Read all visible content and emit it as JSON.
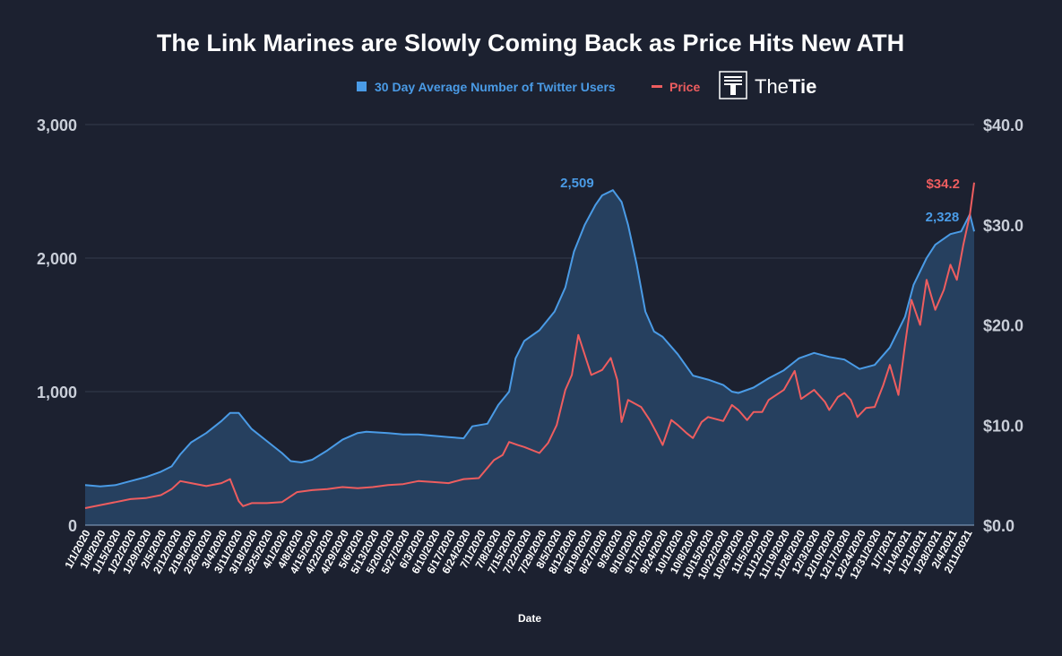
{
  "colors": {
    "background": "#1c2130",
    "grid": "#353b4b",
    "users_line": "#4a9be6",
    "users_fill": "#26405f",
    "price_line": "#ee5d5f",
    "axis_text": "#c9ced8",
    "text": "#ffffff"
  },
  "brand": {
    "logo_icon": "thetie-logo-icon",
    "name_part1": "The",
    "name_part2": "Tie"
  },
  "chart_data": {
    "type": "area",
    "title": "The Link Marines are Slowly Coming Back as Price Hits New ATH",
    "xlabel": "Date",
    "legend_position": "top-center",
    "grid": true,
    "y_left": {
      "min": 0,
      "max": 3000,
      "ticks": [
        0,
        1000,
        2000,
        3000
      ],
      "tick_labels": [
        "0",
        "1,000",
        "2,000",
        "3,000"
      ]
    },
    "y_right": {
      "min": 0,
      "max": 40,
      "ticks": [
        0,
        10,
        20,
        30,
        40
      ],
      "tick_labels": [
        "$0.0",
        "$10.0",
        "$20.0",
        "$30.0",
        "$40.0"
      ]
    },
    "x": {
      "start": "2020-01-01",
      "end": "2021-02-15",
      "tick_labels": [
        "1/1/2020",
        "1/8/2020",
        "1/15/2020",
        "1/22/2020",
        "1/29/2020",
        "2/5/2020",
        "2/12/2020",
        "2/19/2020",
        "2/26/2020",
        "3/4/2020",
        "3/11/2020",
        "3/18/2020",
        "3/25/2020",
        "4/1/2020",
        "4/8/2020",
        "4/15/2020",
        "4/22/2020",
        "4/29/2020",
        "5/6/2020",
        "5/13/2020",
        "5/20/2020",
        "5/27/2020",
        "6/3/2020",
        "6/10/2020",
        "6/17/2020",
        "6/24/2020",
        "7/1/2020",
        "7/8/2020",
        "7/15/2020",
        "7/22/2020",
        "7/29/2020",
        "8/5/2020",
        "8/12/2020",
        "8/19/2020",
        "8/27/2020",
        "9/3/2020",
        "9/10/2020",
        "9/17/2020",
        "9/24/2020",
        "10/1/2020",
        "10/8/2020",
        "10/15/2020",
        "10/22/2020",
        "10/29/2020",
        "11/5/2020",
        "11/12/2020",
        "11/19/2020",
        "11/26/2020",
        "12/3/2020",
        "12/10/2020",
        "12/17/2020",
        "12/24/2020",
        "12/31/2020",
        "1/7/2021",
        "1/14/2021",
        "1/21/2021",
        "1/28/2021",
        "2/4/2021",
        "2/11/2021"
      ]
    },
    "series": [
      {
        "name": "30 Day Average Number of Twitter Users",
        "axis": "left",
        "style": "area",
        "points": [
          [
            "2020-01-01",
            300
          ],
          [
            "2020-01-08",
            290
          ],
          [
            "2020-01-15",
            300
          ],
          [
            "2020-01-22",
            330
          ],
          [
            "2020-01-29",
            360
          ],
          [
            "2020-02-05",
            400
          ],
          [
            "2020-02-10",
            440
          ],
          [
            "2020-02-14",
            530
          ],
          [
            "2020-02-19",
            620
          ],
          [
            "2020-02-26",
            690
          ],
          [
            "2020-03-04",
            780
          ],
          [
            "2020-03-08",
            840
          ],
          [
            "2020-03-12",
            840
          ],
          [
            "2020-03-18",
            720
          ],
          [
            "2020-03-25",
            630
          ],
          [
            "2020-04-01",
            540
          ],
          [
            "2020-04-05",
            480
          ],
          [
            "2020-04-10",
            470
          ],
          [
            "2020-04-15",
            490
          ],
          [
            "2020-04-22",
            560
          ],
          [
            "2020-04-29",
            640
          ],
          [
            "2020-05-06",
            690
          ],
          [
            "2020-05-10",
            700
          ],
          [
            "2020-05-20",
            690
          ],
          [
            "2020-05-27",
            680
          ],
          [
            "2020-06-03",
            680
          ],
          [
            "2020-06-10",
            670
          ],
          [
            "2020-06-17",
            660
          ],
          [
            "2020-06-24",
            650
          ],
          [
            "2020-06-28",
            740
          ],
          [
            "2020-07-05",
            760
          ],
          [
            "2020-07-10",
            900
          ],
          [
            "2020-07-15",
            1000
          ],
          [
            "2020-07-18",
            1250
          ],
          [
            "2020-07-22",
            1380
          ],
          [
            "2020-07-29",
            1460
          ],
          [
            "2020-08-05",
            1600
          ],
          [
            "2020-08-10",
            1780
          ],
          [
            "2020-08-14",
            2050
          ],
          [
            "2020-08-19",
            2250
          ],
          [
            "2020-08-24",
            2400
          ],
          [
            "2020-08-27",
            2470
          ],
          [
            "2020-09-01",
            2509
          ],
          [
            "2020-09-05",
            2420
          ],
          [
            "2020-09-08",
            2250
          ],
          [
            "2020-09-12",
            1950
          ],
          [
            "2020-09-16",
            1600
          ],
          [
            "2020-09-20",
            1450
          ],
          [
            "2020-09-24",
            1410
          ],
          [
            "2020-10-01",
            1280
          ],
          [
            "2020-10-08",
            1120
          ],
          [
            "2020-10-15",
            1090
          ],
          [
            "2020-10-22",
            1050
          ],
          [
            "2020-10-26",
            1000
          ],
          [
            "2020-10-29",
            990
          ],
          [
            "2020-11-05",
            1030
          ],
          [
            "2020-11-12",
            1100
          ],
          [
            "2020-11-19",
            1160
          ],
          [
            "2020-11-26",
            1250
          ],
          [
            "2020-12-03",
            1290
          ],
          [
            "2020-12-10",
            1260
          ],
          [
            "2020-12-17",
            1240
          ],
          [
            "2020-12-24",
            1170
          ],
          [
            "2020-12-31",
            1200
          ],
          [
            "2021-01-07",
            1330
          ],
          [
            "2021-01-14",
            1560
          ],
          [
            "2021-01-18",
            1800
          ],
          [
            "2021-01-24",
            2000
          ],
          [
            "2021-01-28",
            2100
          ],
          [
            "2021-02-04",
            2180
          ],
          [
            "2021-02-09",
            2200
          ],
          [
            "2021-02-13",
            2328
          ],
          [
            "2021-02-15",
            2200
          ]
        ]
      },
      {
        "name": "Price",
        "axis": "right",
        "style": "line",
        "points": [
          [
            "2020-01-01",
            1.7
          ],
          [
            "2020-01-08",
            2.0
          ],
          [
            "2020-01-15",
            2.3
          ],
          [
            "2020-01-22",
            2.6
          ],
          [
            "2020-01-29",
            2.7
          ],
          [
            "2020-02-05",
            3.0
          ],
          [
            "2020-02-10",
            3.6
          ],
          [
            "2020-02-14",
            4.4
          ],
          [
            "2020-02-19",
            4.2
          ],
          [
            "2020-02-26",
            3.9
          ],
          [
            "2020-03-04",
            4.2
          ],
          [
            "2020-03-08",
            4.6
          ],
          [
            "2020-03-12",
            2.4
          ],
          [
            "2020-03-14",
            1.9
          ],
          [
            "2020-03-18",
            2.2
          ],
          [
            "2020-03-25",
            2.2
          ],
          [
            "2020-04-01",
            2.3
          ],
          [
            "2020-04-08",
            3.3
          ],
          [
            "2020-04-15",
            3.5
          ],
          [
            "2020-04-22",
            3.6
          ],
          [
            "2020-04-29",
            3.8
          ],
          [
            "2020-05-06",
            3.7
          ],
          [
            "2020-05-13",
            3.8
          ],
          [
            "2020-05-20",
            4.0
          ],
          [
            "2020-05-27",
            4.1
          ],
          [
            "2020-06-03",
            4.4
          ],
          [
            "2020-06-10",
            4.3
          ],
          [
            "2020-06-17",
            4.2
          ],
          [
            "2020-06-24",
            4.6
          ],
          [
            "2020-07-01",
            4.7
          ],
          [
            "2020-07-08",
            6.5
          ],
          [
            "2020-07-12",
            7.0
          ],
          [
            "2020-07-15",
            8.3
          ],
          [
            "2020-07-19",
            8.0
          ],
          [
            "2020-07-22",
            7.8
          ],
          [
            "2020-07-29",
            7.2
          ],
          [
            "2020-08-02",
            8.2
          ],
          [
            "2020-08-06",
            10.0
          ],
          [
            "2020-08-10",
            13.5
          ],
          [
            "2020-08-13",
            15.0
          ],
          [
            "2020-08-16",
            19.0
          ],
          [
            "2020-08-19",
            17.0
          ],
          [
            "2020-08-22",
            15.0
          ],
          [
            "2020-08-27",
            15.5
          ],
          [
            "2020-08-31",
            16.7
          ],
          [
            "2020-09-03",
            14.5
          ],
          [
            "2020-09-05",
            10.3
          ],
          [
            "2020-09-08",
            12.5
          ],
          [
            "2020-09-14",
            11.8
          ],
          [
            "2020-09-18",
            10.5
          ],
          [
            "2020-09-21",
            9.3
          ],
          [
            "2020-09-24",
            8.0
          ],
          [
            "2020-09-28",
            10.5
          ],
          [
            "2020-10-01",
            10.0
          ],
          [
            "2020-10-05",
            9.2
          ],
          [
            "2020-10-08",
            8.7
          ],
          [
            "2020-10-12",
            10.3
          ],
          [
            "2020-10-15",
            10.8
          ],
          [
            "2020-10-22",
            10.4
          ],
          [
            "2020-10-26",
            12.0
          ],
          [
            "2020-10-29",
            11.5
          ],
          [
            "2020-11-02",
            10.5
          ],
          [
            "2020-11-05",
            11.3
          ],
          [
            "2020-11-09",
            11.3
          ],
          [
            "2020-11-12",
            12.5
          ],
          [
            "2020-11-19",
            13.5
          ],
          [
            "2020-11-24",
            15.4
          ],
          [
            "2020-11-27",
            12.6
          ],
          [
            "2020-12-03",
            13.5
          ],
          [
            "2020-12-08",
            12.3
          ],
          [
            "2020-12-10",
            11.5
          ],
          [
            "2020-12-14",
            12.8
          ],
          [
            "2020-12-17",
            13.2
          ],
          [
            "2020-12-20",
            12.5
          ],
          [
            "2020-12-23",
            10.8
          ],
          [
            "2020-12-27",
            11.7
          ],
          [
            "2020-12-31",
            11.8
          ],
          [
            "2021-01-04",
            14.0
          ],
          [
            "2021-01-07",
            16.0
          ],
          [
            "2021-01-11",
            13.0
          ],
          [
            "2021-01-14",
            18.0
          ],
          [
            "2021-01-17",
            22.5
          ],
          [
            "2021-01-21",
            20.0
          ],
          [
            "2021-01-24",
            24.5
          ],
          [
            "2021-01-28",
            21.5
          ],
          [
            "2021-02-01",
            23.5
          ],
          [
            "2021-02-04",
            26.0
          ],
          [
            "2021-02-07",
            24.5
          ],
          [
            "2021-02-10",
            28.0
          ],
          [
            "2021-02-13",
            31.0
          ],
          [
            "2021-02-15",
            34.2
          ]
        ]
      }
    ],
    "annotations": [
      {
        "series": "30 Day Average Number of Twitter Users",
        "x": "2020-09-01",
        "y": 2509,
        "label": "2,509"
      },
      {
        "series": "30 Day Average Number of Twitter Users",
        "x": "2021-02-13",
        "y": 2328,
        "label": "2,328"
      },
      {
        "series": "Price",
        "x": "2021-02-15",
        "y": 34.2,
        "label": "$34.2"
      }
    ]
  }
}
